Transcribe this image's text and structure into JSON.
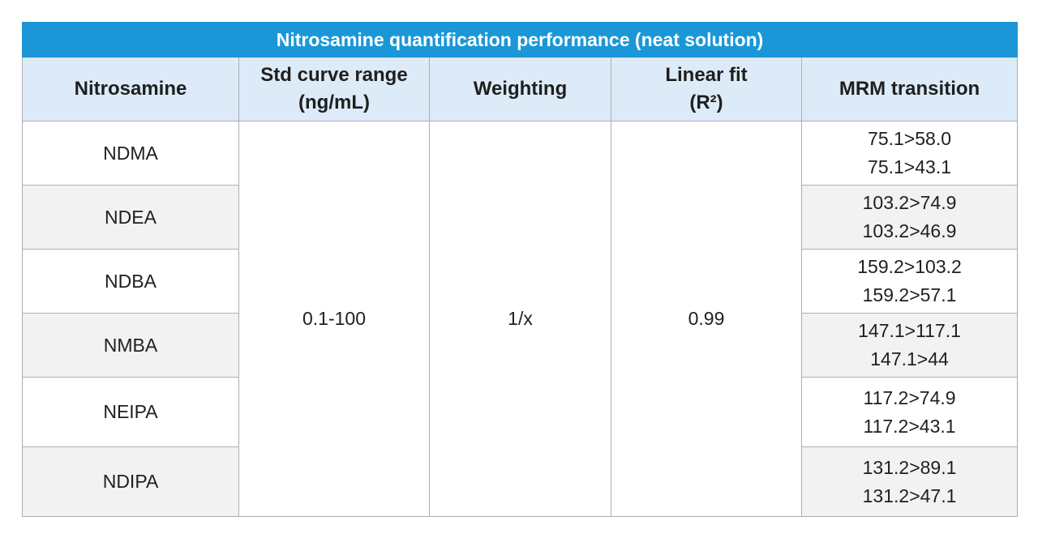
{
  "table": {
    "title": "Nitrosamine quantification performance (neat solution)",
    "headers": {
      "nitrosamine": "Nitrosamine",
      "std_curve_line1": "Std curve range",
      "std_curve_line2": "(ng/mL)",
      "weighting": "Weighting",
      "linear_fit_line1": "Linear fit",
      "linear_fit_line2": "(R²)",
      "mrm": "MRM transition"
    },
    "shared": {
      "std_curve_range": "0.1-100",
      "weighting": "1/x",
      "linear_fit": "0.99"
    },
    "rows": [
      {
        "nitrosamine": "NDMA",
        "mrm": [
          "75.1>58.0",
          "75.1>43.1"
        ]
      },
      {
        "nitrosamine": "NDEA",
        "mrm": [
          "103.2>74.9",
          "103.2>46.9"
        ]
      },
      {
        "nitrosamine": "NDBA",
        "mrm": [
          "159.2>103.2",
          "159.2>57.1"
        ]
      },
      {
        "nitrosamine": "NMBA",
        "mrm": [
          "147.1>117.1",
          "147.1>44"
        ]
      },
      {
        "nitrosamine": "NEIPA",
        "mrm": [
          "117.2>74.9",
          "117.2>43.1"
        ]
      },
      {
        "nitrosamine": "NDIPA",
        "mrm": [
          "131.2>89.1",
          "131.2>47.1"
        ]
      }
    ]
  }
}
